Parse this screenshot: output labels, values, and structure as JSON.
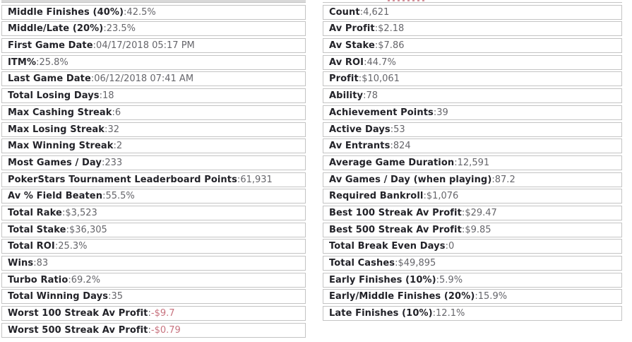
{
  "separator": ": ",
  "colors": {
    "label": "#222228",
    "value": "#66666b",
    "negative": "#c8737f",
    "border": "#c4c4c4",
    "row_bg": "#ffffff",
    "page_bg": "#ffffff",
    "cut_band": "#d9d9d9"
  },
  "left_column": {
    "rows": [
      {
        "label": "Middle Finishes (40%)",
        "value": "42.5%"
      },
      {
        "label": "Middle/Late (20%)",
        "value": "23.5%"
      },
      {
        "label": "First Game Date",
        "value": "04/17/2018 05:17 PM"
      },
      {
        "label": "ITM%",
        "value": "25.8%"
      },
      {
        "label": "Last Game Date",
        "value": "06/12/2018 07:41 AM"
      },
      {
        "label": "Total Losing Days",
        "value": "18"
      },
      {
        "label": "Max Cashing Streak",
        "value": "6"
      },
      {
        "label": "Max Losing Streak",
        "value": "32"
      },
      {
        "label": "Max Winning Streak",
        "value": "2"
      },
      {
        "label": "Most Games / Day",
        "value": "233"
      },
      {
        "label": "PokerStars Tournament Leaderboard Points",
        "value": "61,931"
      },
      {
        "label": "Av % Field Beaten",
        "value": "55.5%"
      },
      {
        "label": "Total Rake",
        "value": "$3,523"
      },
      {
        "label": "Total Stake",
        "value": "$36,305"
      },
      {
        "label": "Total ROI",
        "value": "25.3%"
      },
      {
        "label": "Wins",
        "value": "83"
      },
      {
        "label": "Turbo Ratio",
        "value": "69.2%"
      },
      {
        "label": "Total Winning Days",
        "value": "35"
      },
      {
        "label": "Worst 100 Streak Av Profit",
        "value": "-$9.7",
        "negative": true
      },
      {
        "label": "Worst 500 Streak Av Profit",
        "value": "-$0.79",
        "negative": true
      }
    ]
  },
  "right_column": {
    "rows": [
      {
        "label": "Count",
        "value": "4,621"
      },
      {
        "label": "Av Profit",
        "value": "$2.18"
      },
      {
        "label": "Av Stake",
        "value": "$7.86"
      },
      {
        "label": "Av ROI",
        "value": "44.7%"
      },
      {
        "label": "Profit",
        "value": "$10,061"
      },
      {
        "label": "Ability",
        "value": "78"
      },
      {
        "label": "Achievement Points",
        "value": "39"
      },
      {
        "label": "Active Days",
        "value": "53"
      },
      {
        "label": "Av Entrants",
        "value": "824"
      },
      {
        "label": "Average Game Duration",
        "value": "12,591"
      },
      {
        "label": "Av Games / Day (when playing)",
        "value": "87.2"
      },
      {
        "label": "Required Bankroll",
        "value": "$1,076"
      },
      {
        "label": "Best 100 Streak Av Profit",
        "value": "$29.47"
      },
      {
        "label": "Best 500 Streak Av Profit",
        "value": "$9.85"
      },
      {
        "label": "Total Break Even Days",
        "value": "0"
      },
      {
        "label": "Total Cashes",
        "value": "$49,895"
      },
      {
        "label": "Early Finishes (10%)",
        "value": "5.9%"
      },
      {
        "label": "Early/Middle Finishes (20%)",
        "value": "15.9%"
      },
      {
        "label": "Late Finishes (10%)",
        "value": "12.1%"
      }
    ]
  }
}
